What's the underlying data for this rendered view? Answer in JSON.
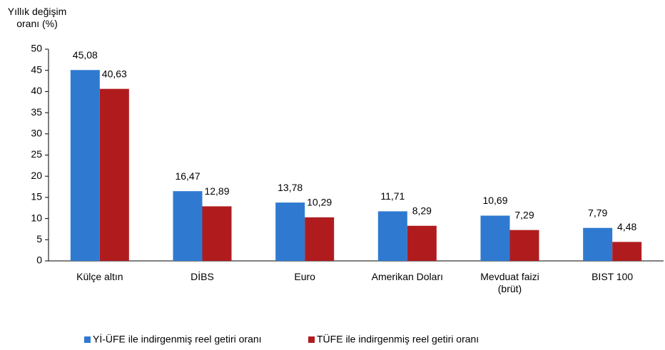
{
  "chart_data": {
    "type": "bar",
    "y_axis_label": "Yıllık değişim\noranı (%)",
    "categories": [
      "Külçe altın",
      "DİBS",
      "Euro",
      "Amerikan Doları",
      "Mevduat faizi\n(brüt)",
      "BIST 100"
    ],
    "series": [
      {
        "name": "Yİ-ÜFE ile indirgenmiş reel getiri oranı",
        "color": "#2f7ad0",
        "values": [
          45.08,
          16.47,
          13.78,
          11.71,
          10.69,
          7.79
        ],
        "value_labels": [
          "45,08",
          "16,47",
          "13,78",
          "11,71",
          "10,69",
          "7,79"
        ]
      },
      {
        "name": "TÜFE ile indirgenmiş reel getiri oranı",
        "color": "#b01c1e",
        "values": [
          40.63,
          12.89,
          10.29,
          8.29,
          7.29,
          4.48
        ],
        "value_labels": [
          "40,63",
          "12,89",
          "10,29",
          "8,29",
          "7,29",
          "4,48"
        ]
      }
    ],
    "ylim": [
      0,
      50
    ],
    "yticks": [
      0,
      5,
      10,
      15,
      20,
      25,
      30,
      35,
      40,
      45,
      50
    ],
    "grid": false,
    "legend": "bottom"
  }
}
